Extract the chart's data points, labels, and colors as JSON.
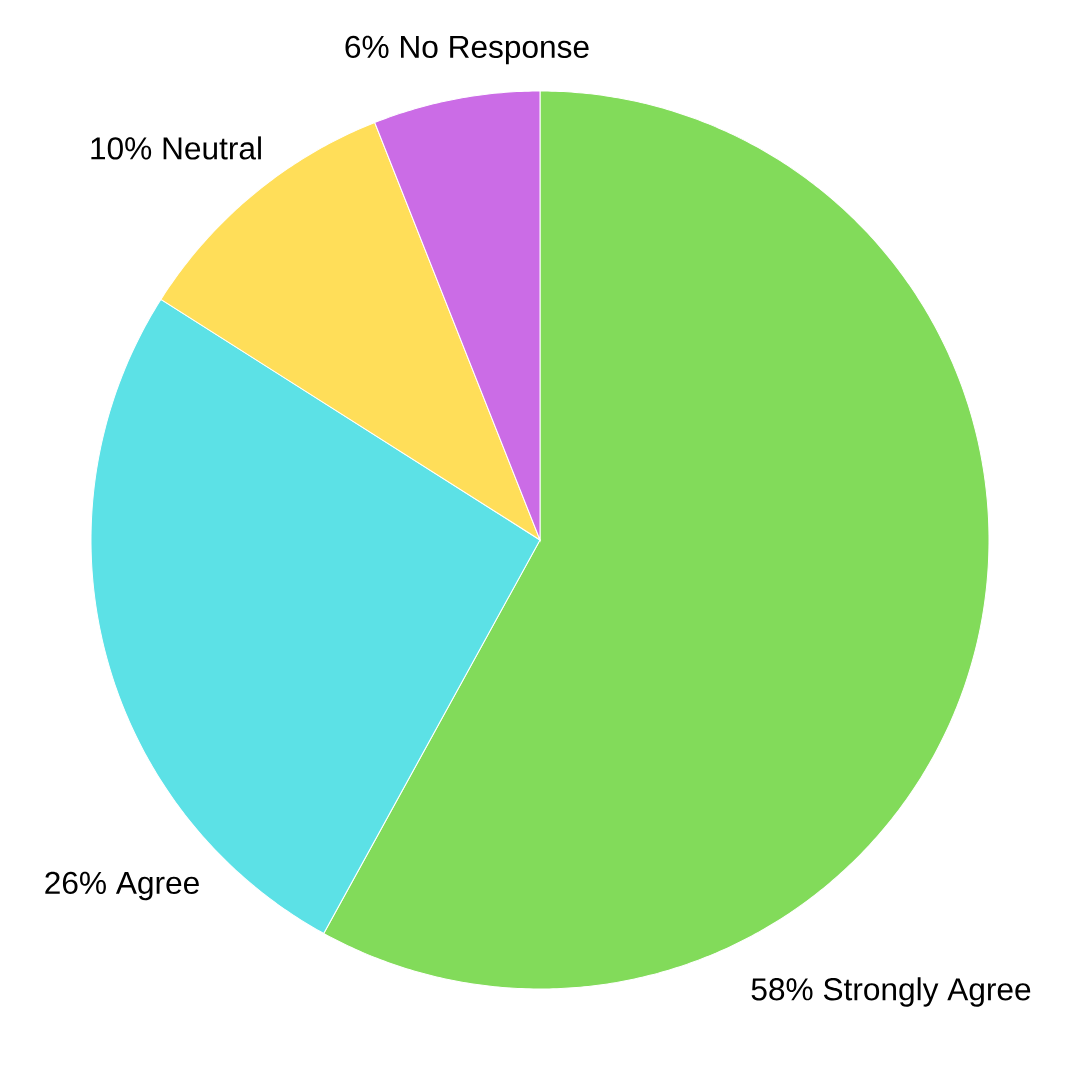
{
  "chart_data": {
    "type": "pie",
    "categories": [
      "Strongly Agree",
      "Agree",
      "Neutral",
      "No Response"
    ],
    "values": [
      58,
      26,
      10,
      6
    ],
    "value_labels": [
      "58%",
      "26%",
      "10%",
      "6%"
    ],
    "colors": [
      "#82db5a",
      "#5ce1e6",
      "#ffde59",
      "#cb6ce6"
    ]
  }
}
